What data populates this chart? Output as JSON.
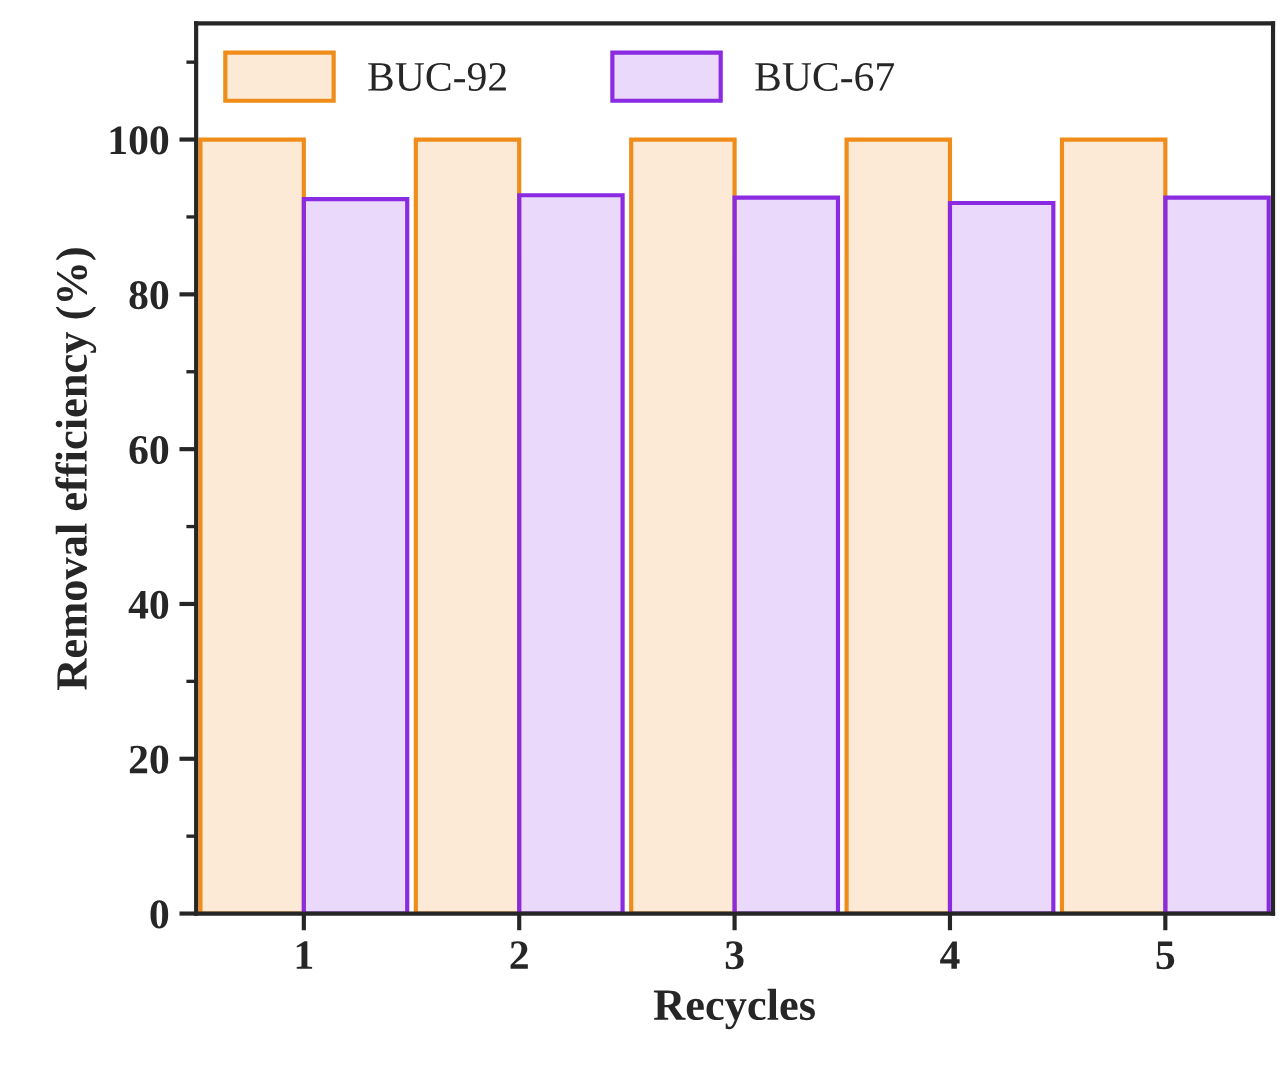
{
  "chart_data": {
    "type": "bar",
    "xlabel": "Recycles",
    "ylabel": "Removal efficiency (%)",
    "categories": [
      "1",
      "2",
      "3",
      "4",
      "5"
    ],
    "series": [
      {
        "name": "BUC-92",
        "color": "#f08c1a",
        "values": [
          100,
          100,
          100,
          100,
          100
        ]
      },
      {
        "name": "BUC-67",
        "color": "#8a2be2",
        "values": [
          92.3,
          92.8,
          92.5,
          91.8,
          92.5
        ]
      }
    ],
    "ylim": [
      0,
      115
    ],
    "yticks": [
      0,
      20,
      40,
      60,
      80,
      100
    ],
    "grid": false,
    "legend": "top left"
  }
}
